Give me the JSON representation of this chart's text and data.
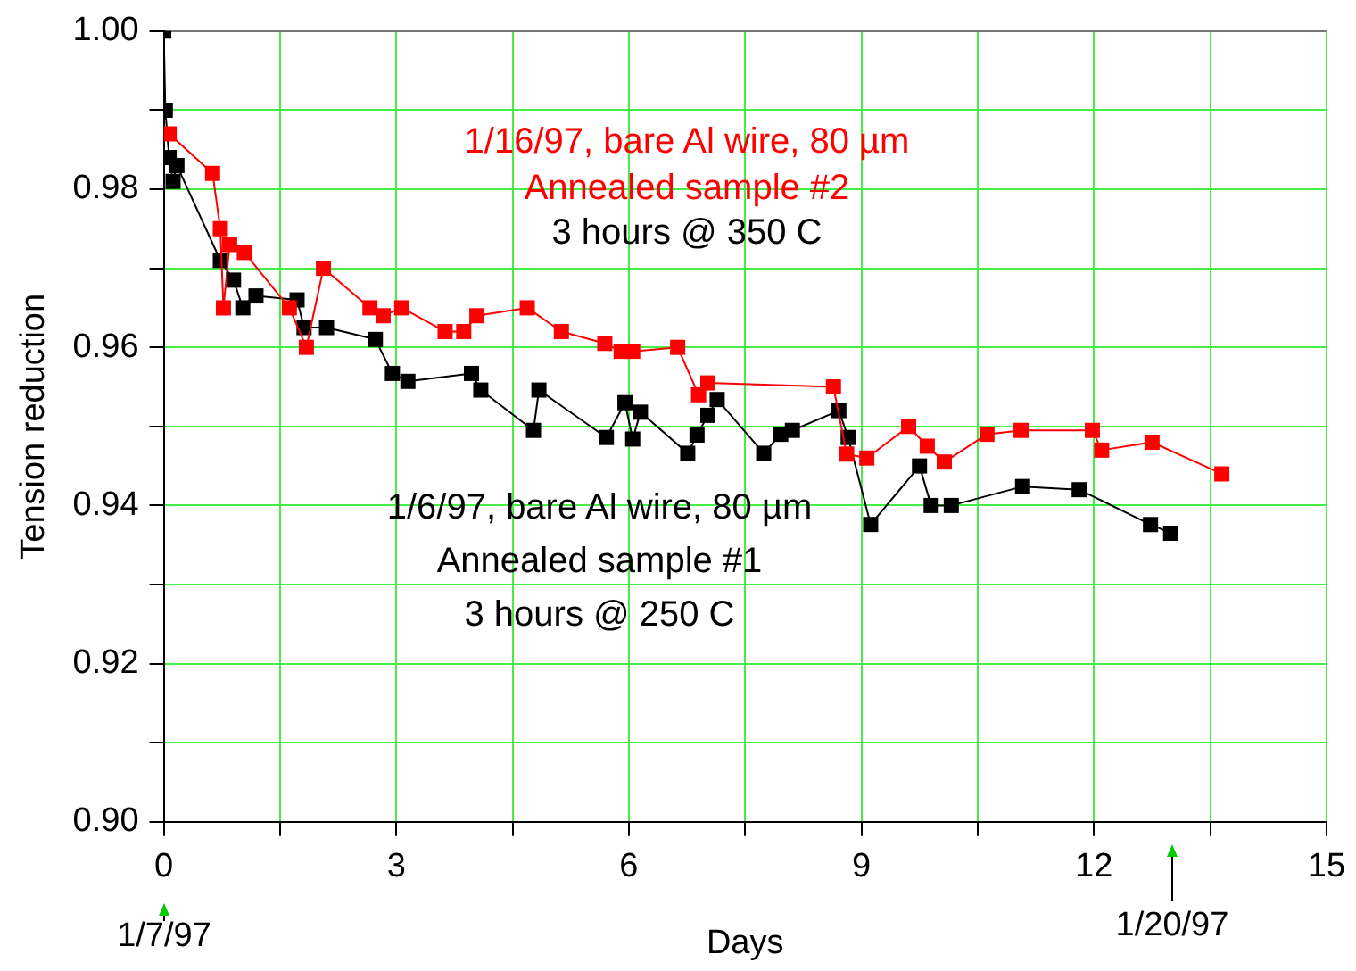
{
  "chart_data": {
    "type": "line",
    "xlabel": "Days",
    "ylabel": "Tension reduction",
    "xlim": [
      0,
      15
    ],
    "xticks": [
      0,
      {
        "value": 1.5,
        "label": null
      },
      3,
      {
        "value": 4.5,
        "label": null
      },
      6,
      {
        "value": 7.5,
        "label": null
      },
      9,
      {
        "value": 10.5,
        "label": null
      },
      12,
      {
        "value": 13.5,
        "label": null
      },
      15
    ],
    "ylim": [
      0.9,
      1.0
    ],
    "yticks": [
      {
        "value": 0.9,
        "label": "0.90"
      },
      {
        "value": 0.91,
        "label": null
      },
      {
        "value": 0.92,
        "label": "0.92"
      },
      {
        "value": 0.93,
        "label": null
      },
      {
        "value": 0.94,
        "label": "0.94"
      },
      {
        "value": 0.95,
        "label": null
      },
      {
        "value": 0.96,
        "label": "0.96"
      },
      {
        "value": 0.97,
        "label": null
      },
      {
        "value": 0.98,
        "label": "0.98"
      },
      {
        "value": 0.99,
        "label": null
      },
      {
        "value": 1.0,
        "label": "1.00"
      }
    ],
    "grid": true,
    "legend": false,
    "marker": "square",
    "line_style": "solid",
    "series": [
      {
        "name": "1/16/97, bare Al wire, 80 µm\nAnnealed sample #2",
        "color": "#ff0000",
        "x": [
          0.07,
          0.63,
          0.73,
          0.77,
          0.85,
          1.04,
          1.62,
          1.84,
          2.06,
          2.66,
          2.83,
          3.07,
          3.63,
          3.87,
          4.04,
          4.69,
          5.13,
          5.69,
          5.9,
          6.05,
          6.63,
          6.9,
          7.02,
          8.64,
          8.81,
          9.07,
          9.61,
          9.85,
          10.07,
          10.62,
          11.06,
          11.98,
          12.1,
          12.75,
          13.65
        ],
        "values": [
          0.987,
          0.982,
          0.975,
          0.965,
          0.973,
          0.972,
          0.965,
          0.96,
          0.97,
          0.965,
          0.964,
          0.965,
          0.962,
          0.962,
          0.964,
          0.965,
          0.962,
          0.9605,
          0.9595,
          0.9595,
          0.96,
          0.954,
          0.9555,
          0.955,
          0.9465,
          0.946,
          0.95,
          0.9475,
          0.9455,
          0.949,
          0.9495,
          0.9495,
          0.947,
          0.948,
          0.944
        ]
      },
      {
        "name": "1/6/97, bare Al wire, 80 µm\nAnnealed sample #1\n3 hours @ 250 C",
        "color": "#000000",
        "x": [
          0,
          0.02,
          0.07,
          0.12,
          0.17,
          0.73,
          0.9,
          1.02,
          1.19,
          1.72,
          1.81,
          2.1,
          2.73,
          2.95,
          3.15,
          3.97,
          4.09,
          4.77,
          4.84,
          5.71,
          5.95,
          6.05,
          6.15,
          6.76,
          6.88,
          7.02,
          7.14,
          7.74,
          7.96,
          8.11,
          8.71,
          8.83,
          9.12,
          9.75,
          9.9,
          10.16,
          11.08,
          11.81,
          12.73,
          12.99
        ],
        "values": [
          1.0,
          0.99,
          0.984,
          0.981,
          0.983,
          0.971,
          0.9685,
          0.965,
          0.9665,
          0.966,
          0.9625,
          0.9625,
          0.961,
          0.9567,
          0.9557,
          0.9567,
          0.9546,
          0.9495,
          0.9546,
          0.9486,
          0.953,
          0.9484,
          0.9518,
          0.9466,
          0.9489,
          0.9514,
          0.9534,
          0.9466,
          0.949,
          0.9495,
          0.952,
          0.9486,
          0.9376,
          0.945,
          0.94,
          0.94,
          0.9424,
          0.942,
          0.9376,
          0.9365
        ]
      }
    ],
    "annotations": [
      "3 hours @ 350 C",
      "1/7/97",
      "1/20/97"
    ]
  }
}
